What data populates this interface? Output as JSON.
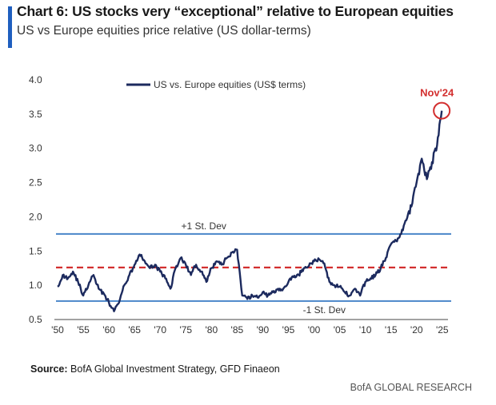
{
  "header": {
    "title": "Chart 6: US stocks very “exceptional” relative to European equities",
    "subtitle": "US vs Europe equities price relative (US dollar-terms)"
  },
  "footer": {
    "source_label": "Source:",
    "source_text": "BofA Global Investment Strategy, GFD Finaeon",
    "brand": "BofA GLOBAL RESEARCH"
  },
  "colors": {
    "series": "#1c2a5e",
    "std_lines": "#4a86c9",
    "mean_line": "#d32f2f",
    "callout": "#d32f2f",
    "accent": "#1f5fbf"
  },
  "chart_data": {
    "type": "line",
    "title": "Chart 6: US stocks very “exceptional” relative to European equities",
    "subtitle": "US vs Europe equities price relative (US dollar-terms)",
    "xlabel": "",
    "ylabel": "",
    "xlim": [
      1950,
      2025.5
    ],
    "ylim": [
      0.5,
      4.0
    ],
    "yticks": [
      "0.5",
      "1.0",
      "1.5",
      "2.0",
      "2.5",
      "3.0",
      "3.5",
      "4.0"
    ],
    "xticks": [
      "'50",
      "'55",
      "'60",
      "'65",
      "'70",
      "'75",
      "'80",
      "'85",
      "'90",
      "'95",
      "'00",
      "'05",
      "'10",
      "'15",
      "'20",
      "'25"
    ],
    "grid": false,
    "legend": {
      "position": "top-left",
      "entries": [
        "US vs. Europe equities (US$ terms)"
      ]
    },
    "series": [
      {
        "name": "US vs. Europe equities (US$ terms)",
        "x": [
          1950,
          1951,
          1952,
          1953,
          1954,
          1955,
          1956,
          1957,
          1958,
          1959,
          1960,
          1961,
          1962,
          1963,
          1964,
          1965,
          1966,
          1967,
          1968,
          1969,
          1970,
          1971,
          1972,
          1973,
          1974,
          1975,
          1976,
          1977,
          1978,
          1979,
          1980,
          1981,
          1982,
          1983,
          1984,
          1985,
          1986,
          1987,
          1988,
          1989,
          1990,
          1991,
          1992,
          1993,
          1994,
          1995,
          1996,
          1997,
          1998,
          1999,
          2000,
          2001,
          2002,
          2003,
          2004,
          2005,
          2006,
          2007,
          2008,
          2009,
          2010,
          2011,
          2012,
          2013,
          2014,
          2015,
          2016,
          2017,
          2018,
          2019,
          2020,
          2021,
          2022,
          2023,
          2024,
          2024.9
        ],
        "y": [
          0.98,
          1.15,
          1.1,
          1.2,
          1.05,
          0.85,
          1.0,
          1.15,
          0.95,
          0.88,
          0.75,
          0.62,
          0.75,
          1.0,
          1.15,
          1.3,
          1.45,
          1.35,
          1.25,
          1.3,
          1.2,
          1.1,
          0.95,
          1.25,
          1.4,
          1.3,
          1.15,
          1.3,
          1.2,
          1.05,
          1.25,
          1.35,
          1.3,
          1.4,
          1.48,
          1.52,
          0.85,
          0.8,
          0.85,
          0.82,
          0.9,
          0.85,
          0.9,
          0.95,
          0.95,
          1.05,
          1.12,
          1.15,
          1.25,
          1.28,
          1.35,
          1.38,
          1.32,
          1.05,
          1.0,
          0.98,
          0.9,
          0.85,
          0.95,
          0.85,
          1.05,
          1.1,
          1.15,
          1.25,
          1.4,
          1.6,
          1.65,
          1.75,
          1.95,
          2.15,
          2.5,
          2.85,
          2.55,
          2.8,
          3.05,
          3.55
        ]
      }
    ],
    "reference_lines": [
      {
        "label": "+1 St. Dev",
        "y": 1.75,
        "style": "solid"
      },
      {
        "label": "mean",
        "y": 1.26,
        "style": "dashed"
      },
      {
        "label": "-1 St. Dev",
        "y": 0.77,
        "style": "solid"
      }
    ],
    "annotations": [
      {
        "text": "Nov'24",
        "x": 2024.9,
        "y": 3.55
      }
    ]
  }
}
